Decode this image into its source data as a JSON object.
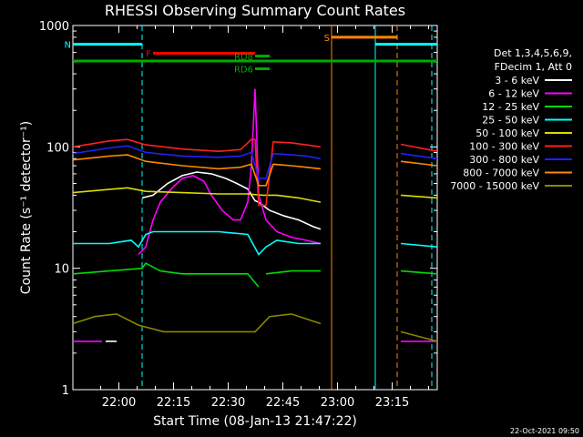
{
  "chart_data": {
    "type": "line",
    "title": "RHESSI Observing Summary Count Rates",
    "xlabel": "Start Time (08-Jan-13 21:47:22)",
    "ylabel": "Count Rate (s⁻¹ detector⁻¹)",
    "yscale": "log",
    "ylim": [
      1,
      1000
    ],
    "xlim_minutes": [
      0,
      100
    ],
    "x_ticks": [
      "22:00",
      "22:15",
      "22:30",
      "22:45",
      "23:00",
      "23:15"
    ],
    "y_ticks": [
      "1",
      "10",
      "100",
      "1000"
    ],
    "legend_header": [
      "Det 1,3,4,5,6,9,",
      "FDecim 1, Att 0"
    ],
    "footer_date": "22-Oct-2021 09:50",
    "series": [
      {
        "name": "3 - 6 keV",
        "color": "#ffffff",
        "segments": [
          [
            [
              9,
              2.5
            ],
            [
              12,
              2.5
            ]
          ],
          [
            [
              19,
              38
            ],
            [
              22,
              40
            ],
            [
              26,
              50
            ],
            [
              30,
              58
            ],
            [
              34,
              62
            ],
            [
              38,
              60
            ],
            [
              42,
              55
            ],
            [
              45,
              50
            ],
            [
              48,
              45
            ],
            [
              50,
              36
            ],
            [
              51,
              35
            ],
            [
              54,
              30
            ],
            [
              58,
              27
            ],
            [
              62,
              25
            ],
            [
              66,
              22
            ],
            [
              68,
              21
            ]
          ]
        ]
      },
      {
        "name": "6 - 12 keV",
        "color": "#ff00ff",
        "segments": [
          [
            [
              0,
              2.5
            ],
            [
              8,
              2.5
            ]
          ],
          [
            [
              18,
              13
            ],
            [
              20,
              15
            ],
            [
              22,
              25
            ],
            [
              24,
              35
            ],
            [
              27,
              45
            ],
            [
              30,
              55
            ],
            [
              33,
              58
            ],
            [
              36,
              52
            ],
            [
              38,
              40
            ],
            [
              41,
              30
            ],
            [
              44,
              25
            ],
            [
              46,
              25
            ],
            [
              48,
              35
            ],
            [
              49,
              70
            ],
            [
              50,
              300
            ],
            [
              51,
              40
            ],
            [
              53,
              25
            ],
            [
              56,
              20
            ],
            [
              60,
              18
            ],
            [
              64,
              17
            ],
            [
              68,
              16
            ]
          ],
          [
            [
              90,
              2.5
            ],
            [
              100,
              2.5
            ]
          ]
        ]
      },
      {
        "name": "12 - 25 keV",
        "color": "#00dd00",
        "segments": [
          [
            [
              0,
              9
            ],
            [
              19,
              10
            ],
            [
              20,
              11
            ],
            [
              24,
              9.5
            ],
            [
              30,
              9
            ],
            [
              40,
              9
            ],
            [
              48,
              9
            ],
            [
              51,
              7
            ]
          ],
          [
            [
              53,
              9
            ],
            [
              60,
              9.5
            ],
            [
              68,
              9.5
            ]
          ],
          [
            [
              90,
              9.5
            ],
            [
              100,
              9
            ]
          ]
        ]
      },
      {
        "name": "25 - 50 keV",
        "color": "#00ffff",
        "segments": [
          [
            [
              0,
              16
            ],
            [
              10,
              16
            ],
            [
              16,
              17
            ],
            [
              18,
              15
            ],
            [
              20,
              19
            ],
            [
              22,
              20
            ],
            [
              30,
              20
            ],
            [
              40,
              20
            ],
            [
              48,
              19
            ],
            [
              51,
              13
            ],
            [
              53,
              15
            ],
            [
              56,
              17
            ],
            [
              62,
              16
            ],
            [
              68,
              16
            ]
          ],
          [
            [
              90,
              16
            ],
            [
              100,
              15
            ]
          ]
        ]
      },
      {
        "name": "50 - 100 keV",
        "color": "#dddd00",
        "segments": [
          [
            [
              0,
              42
            ],
            [
              15,
              46
            ],
            [
              20,
              43
            ],
            [
              30,
              42
            ],
            [
              40,
              41
            ],
            [
              48,
              41
            ],
            [
              52,
              40
            ],
            [
              56,
              40
            ],
            [
              62,
              38
            ],
            [
              68,
              35
            ]
          ],
          [
            [
              90,
              40
            ],
            [
              100,
              38
            ]
          ]
        ]
      },
      {
        "name": "100 - 300 keV",
        "color": "#ff2020",
        "segments": [
          [
            [
              0,
              100
            ],
            [
              10,
              112
            ],
            [
              15,
              115
            ],
            [
              20,
              104
            ],
            [
              30,
              96
            ],
            [
              40,
              92
            ],
            [
              46,
              95
            ],
            [
              49,
              115
            ],
            [
              50,
              115
            ],
            [
              51,
              33
            ],
            [
              53,
              33
            ],
            [
              55,
              110
            ],
            [
              60,
              108
            ],
            [
              64,
              104
            ],
            [
              68,
              100
            ]
          ],
          [
            [
              90,
              105
            ],
            [
              100,
              92
            ]
          ]
        ]
      },
      {
        "name": "300 - 800 keV",
        "color": "#2020ff",
        "segments": [
          [
            [
              0,
              88
            ],
            [
              10,
              98
            ],
            [
              15,
              102
            ],
            [
              20,
              90
            ],
            [
              30,
              84
            ],
            [
              40,
              82
            ],
            [
              46,
              84
            ],
            [
              49,
              90
            ],
            [
              51,
              55
            ],
            [
              53,
              55
            ],
            [
              55,
              88
            ],
            [
              60,
              86
            ],
            [
              64,
              84
            ],
            [
              68,
              80
            ]
          ],
          [
            [
              90,
              88
            ],
            [
              100,
              80
            ]
          ]
        ]
      },
      {
        "name": "800 - 7000 keV",
        "color": "#ff8800",
        "segments": [
          [
            [
              0,
              78
            ],
            [
              10,
              84
            ],
            [
              15,
              86
            ],
            [
              20,
              76
            ],
            [
              30,
              70
            ],
            [
              40,
              66
            ],
            [
              46,
              68
            ],
            [
              49,
              72
            ],
            [
              51,
              48
            ],
            [
              53,
              48
            ],
            [
              55,
              72
            ],
            [
              60,
              70
            ],
            [
              64,
              68
            ],
            [
              68,
              66
            ]
          ],
          [
            [
              90,
              76
            ],
            [
              100,
              70
            ]
          ]
        ]
      },
      {
        "name": "7000 - 15000 keV",
        "color": "#888800",
        "segments": [
          [
            [
              0,
              3.5
            ],
            [
              6,
              4
            ],
            [
              12,
              4.2
            ],
            [
              18,
              3.4
            ],
            [
              25,
              3
            ],
            [
              35,
              3
            ],
            [
              45,
              3
            ],
            [
              50,
              3
            ],
            [
              54,
              4
            ],
            [
              60,
              4.2
            ],
            [
              68,
              3.5
            ]
          ],
          [
            [
              90,
              3
            ],
            [
              100,
              2.5
            ]
          ]
        ]
      }
    ],
    "bars": [
      {
        "label": "N",
        "color": "#00ffff",
        "from": 0,
        "to": 19,
        "level": 700
      },
      {
        "label": "F",
        "color": "#ff0000",
        "from": 22,
        "to": 50,
        "level": 590
      },
      {
        "label": "RD8",
        "color": "#00aa00",
        "from": 50,
        "to": 54,
        "level": 560
      },
      {
        "label": "RD6",
        "color": "#00aa00",
        "from": 50,
        "to": 54,
        "level": 440
      },
      {
        "label": "",
        "color": "#00aa00",
        "from": 0,
        "to": 100,
        "level": 510
      },
      {
        "label": "S",
        "color": "#ff8800",
        "from": 71,
        "to": 89,
        "level": 800
      },
      {
        "label": "",
        "color": "#00ffff",
        "from": 83,
        "to": 100,
        "level": 700
      }
    ],
    "vlines": [
      {
        "x": 19,
        "color": "#00ffff",
        "style": "dashed"
      },
      {
        "x": 71,
        "color": "#ff8800",
        "style": "solid"
      },
      {
        "x": 83,
        "color": "#00ffff",
        "style": "solid"
      },
      {
        "x": 89,
        "color": "#ff8800",
        "style": "dashed"
      },
      {
        "x": 98.5,
        "color": "#00ffff",
        "style": "dashed"
      }
    ]
  }
}
